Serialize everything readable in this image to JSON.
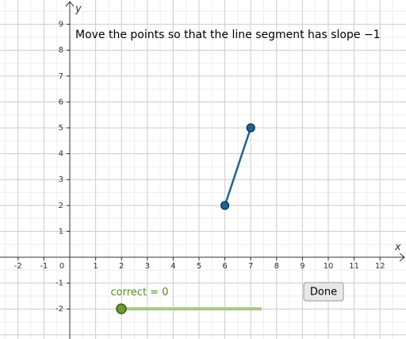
{
  "instruction": "Move the points so that the line segment has slope −1",
  "axes": {
    "x_label": "x",
    "y_label": "y",
    "x_ticks": [
      -2,
      -1,
      0,
      1,
      2,
      3,
      4,
      5,
      6,
      7,
      8,
      9,
      10,
      11,
      12
    ],
    "y_ticks": [
      -2,
      -1,
      1,
      2,
      3,
      4,
      5,
      6,
      7,
      8,
      9
    ]
  },
  "segment": {
    "points": [
      {
        "x": 6,
        "y": 2
      },
      {
        "x": 7,
        "y": 5
      }
    ]
  },
  "slider": {
    "label": "correct = 0"
  },
  "button": {
    "label": "Done"
  }
}
